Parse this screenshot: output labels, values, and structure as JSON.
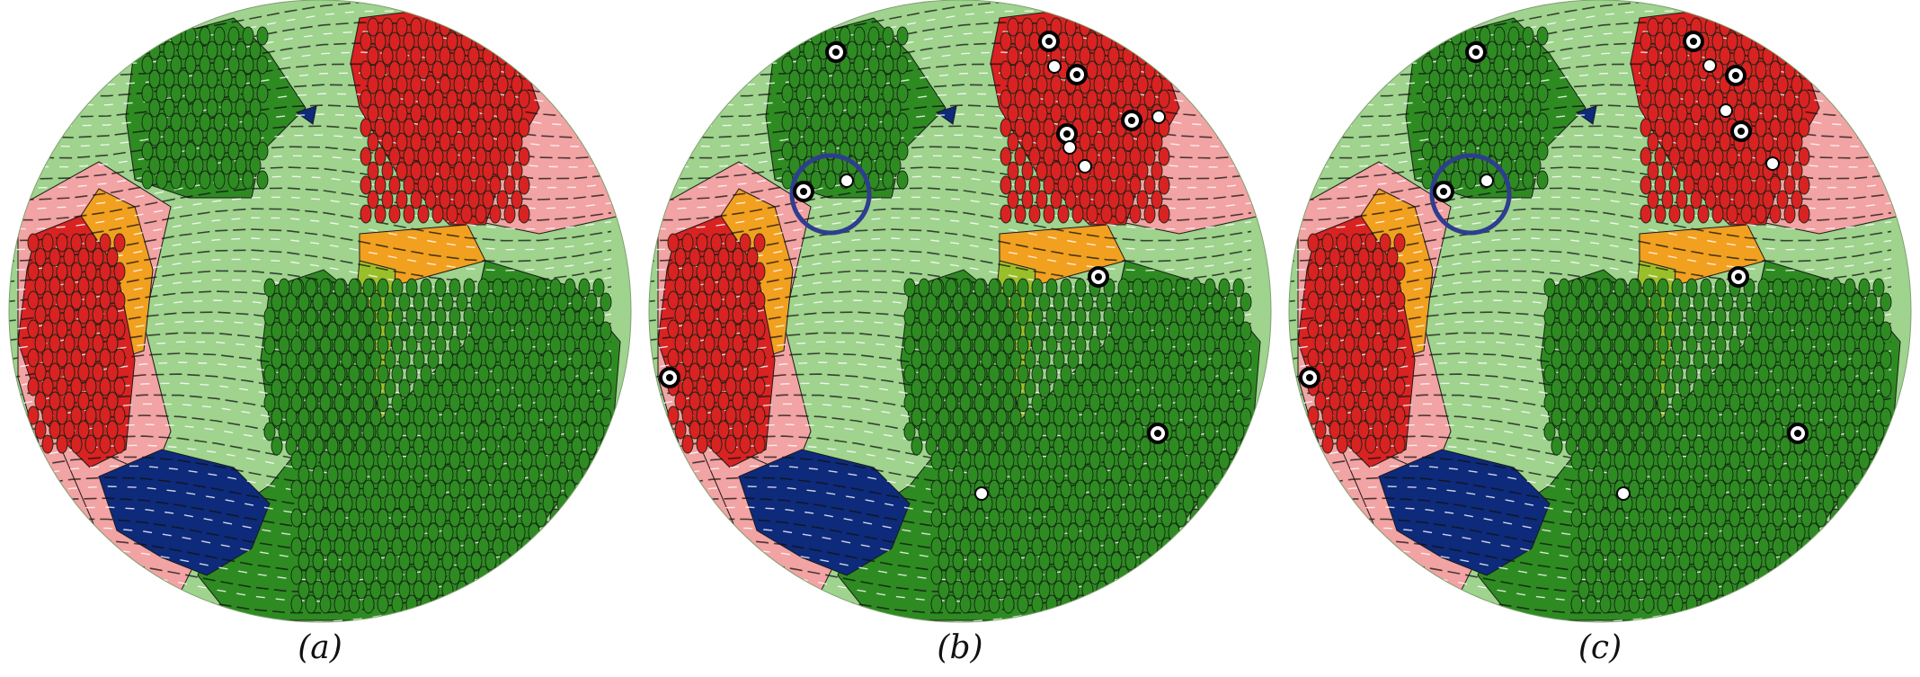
{
  "figure": {
    "panels": [
      {
        "id": "a",
        "label": "(a)",
        "show_markers": false,
        "show_highlight": false
      },
      {
        "id": "b",
        "label": "(b)",
        "show_markers": true,
        "show_highlight": true
      },
      {
        "id": "c",
        "label": "(c)",
        "show_markers": true,
        "show_highlight": true
      }
    ],
    "colors": {
      "background_green": "#9fd38e",
      "background_pink": "#f2a3a3",
      "dark_green": "#2e8b22",
      "red": "#d92222",
      "orange": "#f2a020",
      "navy": "#0e2a7a",
      "yellow_green": "#9bbf2a",
      "hatch_dark": "#111111",
      "hatch_light": "#ffffff",
      "highlight_ring": "#2f3d8f"
    }
  }
}
